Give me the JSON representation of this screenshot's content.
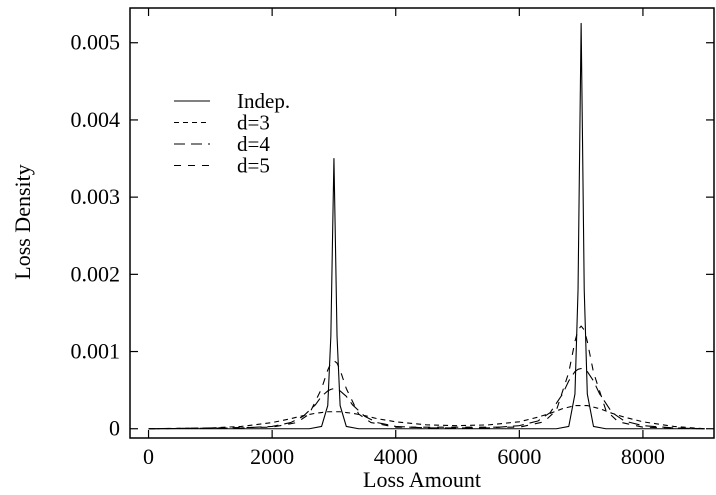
{
  "chart_data": {
    "type": "line",
    "title": "",
    "xlabel": "Loss Amount",
    "ylabel": "Loss Density",
    "xlim": [
      -300,
      9150
    ],
    "ylim": [
      -0.00012,
      0.00545
    ],
    "x_ticks": [
      0,
      2000,
      4000,
      6000,
      8000
    ],
    "x_tick_labels": [
      "0",
      "2000",
      "4000",
      "6000",
      "8000"
    ],
    "y_ticks": [
      0,
      0.001,
      0.002,
      0.003,
      0.004,
      0.005
    ],
    "y_tick_labels": [
      "0",
      "0.001",
      "0.002",
      "0.003",
      "0.004",
      "0.005"
    ],
    "grid": false,
    "legend_position": "upper-left",
    "series": [
      {
        "name": "Indep.",
        "style": "solid",
        "x": [
          0,
          2600,
          2800,
          2900,
          2950,
          2980,
          3000,
          3020,
          3050,
          3100,
          3200,
          3400,
          6600,
          6800,
          6900,
          6950,
          6980,
          7000,
          7020,
          7050,
          7100,
          7200,
          7400,
          9000
        ],
        "y": [
          0,
          0,
          3e-05,
          0.0003,
          0.0012,
          0.0026,
          0.0035,
          0.0026,
          0.0012,
          0.0003,
          3e-05,
          0,
          0,
          3e-05,
          0.00045,
          0.0018,
          0.0039,
          0.00525,
          0.0039,
          0.0018,
          0.00045,
          3e-05,
          0,
          0
        ]
      },
      {
        "name": "d=3",
        "style": "dashed",
        "x": [
          0,
          1000,
          1500,
          2000,
          2300,
          2500,
          2700,
          2800,
          2900,
          3000,
          3100,
          3200,
          3300,
          3500,
          3700,
          4000,
          4500,
          5000,
          5500,
          6000,
          6300,
          6500,
          6700,
          6800,
          6900,
          7000,
          7100,
          7200,
          7300,
          7500,
          7700,
          8000,
          8500,
          9000
        ],
        "y": [
          0,
          1e-05,
          3e-05,
          8e-05,
          0.00013,
          0.00017,
          0.0002,
          0.00021,
          0.00022,
          0.00022,
          0.00022,
          0.00021,
          0.0002,
          0.00017,
          0.00013,
          9e-05,
          5e-05,
          4e-05,
          5e-05,
          9e-05,
          0.00015,
          0.0002,
          0.00026,
          0.00028,
          0.0003,
          0.0003,
          0.0003,
          0.00028,
          0.00026,
          0.0002,
          0.00015,
          9e-05,
          3e-05,
          0
        ]
      },
      {
        "name": "d=4",
        "style": "long-dashed",
        "x": [
          0,
          1500,
          2000,
          2300,
          2500,
          2700,
          2800,
          2900,
          2950,
          3000,
          3050,
          3100,
          3200,
          3300,
          3500,
          3700,
          4000,
          4500,
          5000,
          5500,
          6000,
          6300,
          6500,
          6700,
          6800,
          6900,
          6950,
          7000,
          7050,
          7100,
          7200,
          7300,
          7500,
          7700,
          8000,
          8500,
          9000
        ],
        "y": [
          0,
          1e-05,
          3e-05,
          8e-05,
          0.00016,
          0.00031,
          0.00042,
          0.00049,
          0.00051,
          0.00052,
          0.00051,
          0.00049,
          0.00042,
          0.00031,
          0.00016,
          8e-05,
          3e-05,
          1e-05,
          1e-05,
          1e-05,
          4e-05,
          0.0001,
          0.00021,
          0.00045,
          0.00062,
          0.00074,
          0.00077,
          0.00078,
          0.00077,
          0.00074,
          0.00062,
          0.00045,
          0.00021,
          0.0001,
          4e-05,
          1e-05,
          0
        ]
      },
      {
        "name": "d=5",
        "style": "dash-short",
        "x": [
          0,
          2000,
          2400,
          2600,
          2800,
          2900,
          2950,
          3000,
          3050,
          3100,
          3200,
          3400,
          3600,
          4000,
          6000,
          6400,
          6600,
          6800,
          6900,
          6950,
          7000,
          7050,
          7100,
          7200,
          7400,
          7600,
          8000,
          9000
        ],
        "y": [
          0,
          2e-05,
          8e-05,
          0.00019,
          0.00052,
          0.00076,
          0.00085,
          0.00088,
          0.00085,
          0.00076,
          0.00052,
          0.00019,
          8e-05,
          2e-05,
          2e-05,
          9e-05,
          0.00024,
          0.00073,
          0.00113,
          0.00128,
          0.00133,
          0.00128,
          0.00113,
          0.00073,
          0.00024,
          9e-05,
          2e-05,
          0
        ]
      }
    ]
  }
}
